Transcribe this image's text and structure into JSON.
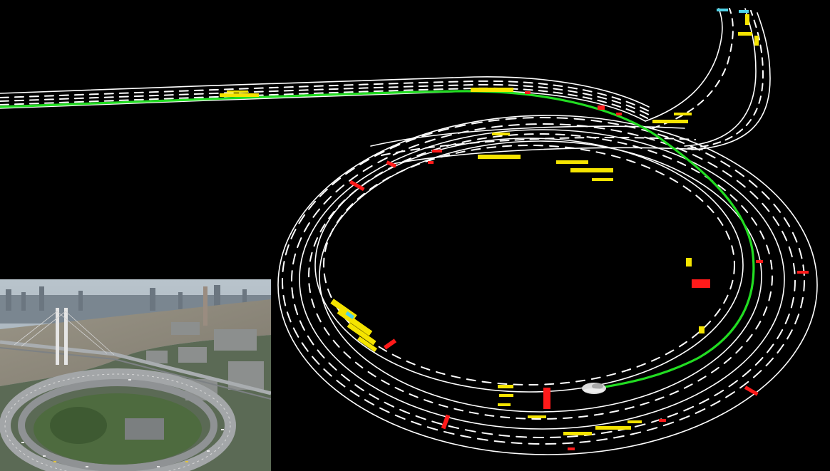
{
  "scene": {
    "description_tags": [
      "hd-map-visualization",
      "ramp-interchange",
      "aerial-photo-inset"
    ],
    "colors": {
      "background": "#000000",
      "lane_markings": "#ffffff",
      "planned_path": "#22dd22",
      "feature_yellow": "#f5e400",
      "feature_red": "#ff1a1a",
      "feature_cyan": "#4fd3e8",
      "ego_vehicle": "#dcdcdc"
    },
    "icons": {
      "ego_vehicle": "car-icon"
    }
  }
}
